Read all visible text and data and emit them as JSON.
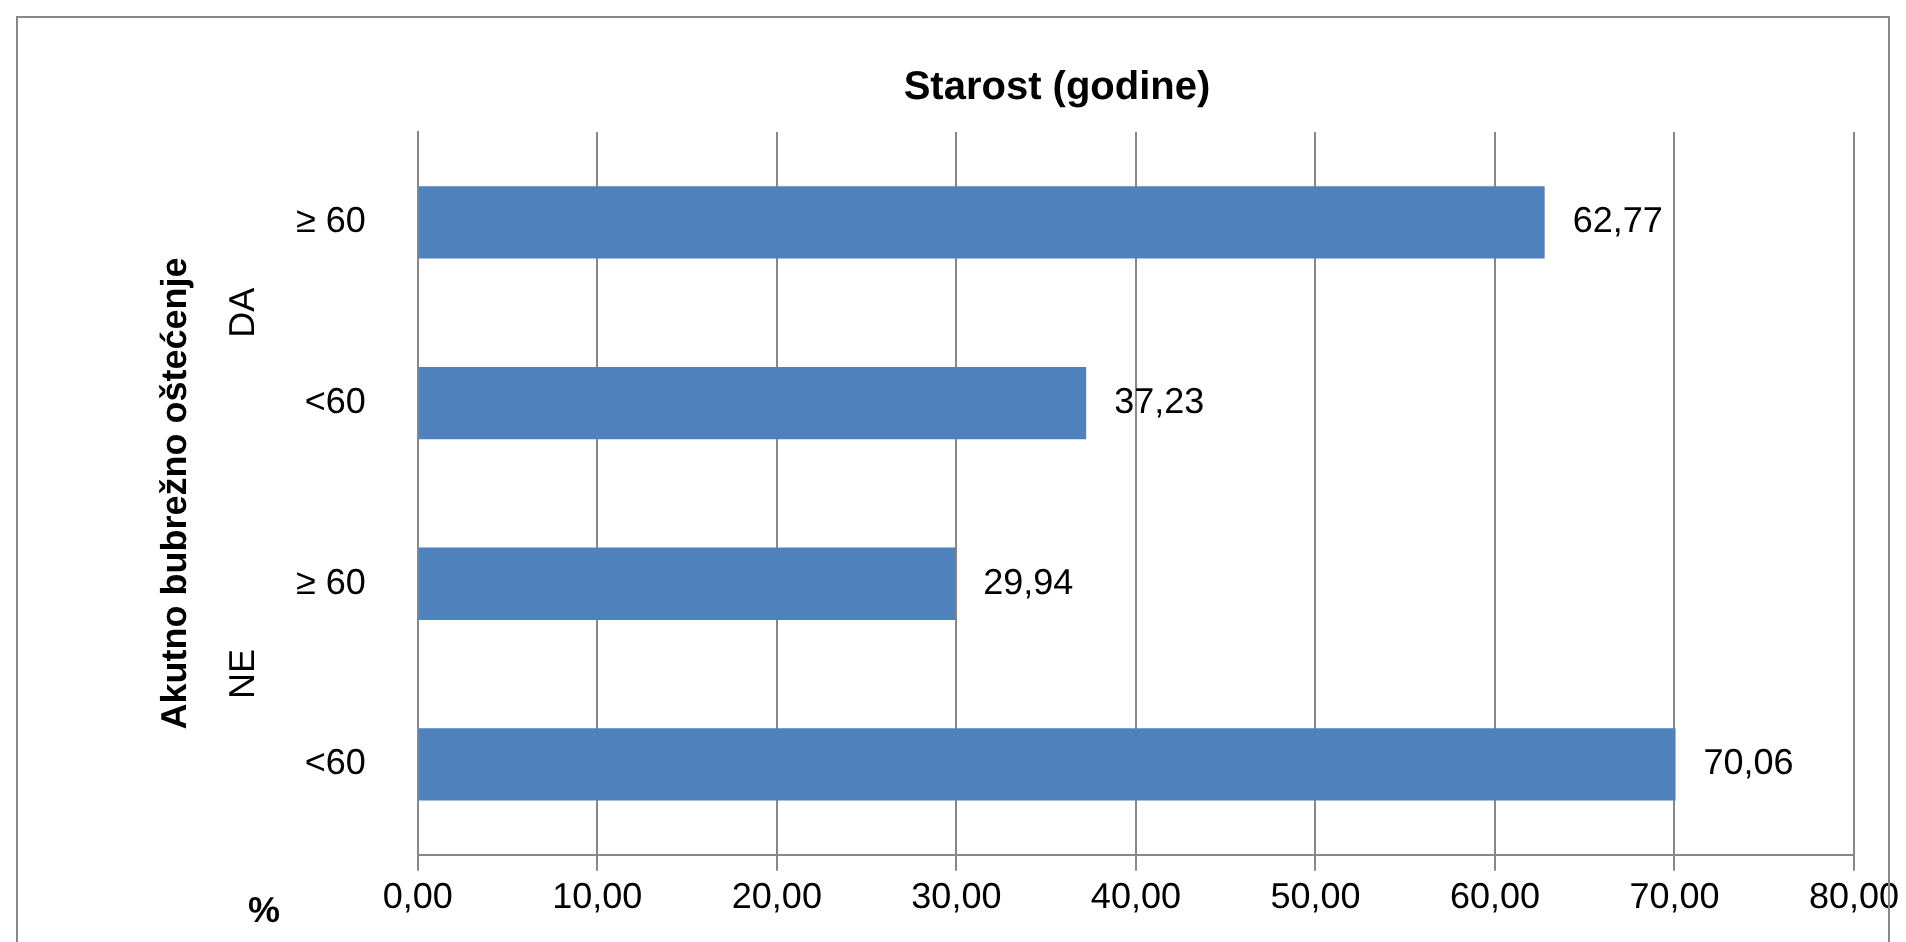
{
  "chart_data": {
    "type": "bar",
    "orientation": "horizontal",
    "title": "Starost (godine)",
    "xlabel": "%",
    "ylabel": "Akutno bubrežno oštećenje",
    "categories": [
      "≥ 60",
      "<60",
      "≥ 60",
      "<60"
    ],
    "values": [
      62.77,
      37.23,
      29.94,
      70.06
    ],
    "color": "#4f81bd",
    "value_labels": [
      "62,77",
      "37,23",
      "29,94",
      "70,06"
    ],
    "annotations": [
      "DA",
      "NE"
    ],
    "xlim": [
      0,
      80
    ],
    "xticks": [
      {
        "value": 0,
        "label": "0,00"
      },
      {
        "value": 10,
        "label": "10,00"
      },
      {
        "value": 20,
        "label": "20,00"
      },
      {
        "value": 30,
        "label": "30,00"
      },
      {
        "value": 40,
        "label": "40,00"
      },
      {
        "value": 50,
        "label": "50,00"
      },
      {
        "value": 60,
        "label": "60,00"
      },
      {
        "value": 70,
        "label": "70,00"
      },
      {
        "value": 80,
        "label": "80,00"
      }
    ],
    "grid": "x",
    "legend": false
  }
}
